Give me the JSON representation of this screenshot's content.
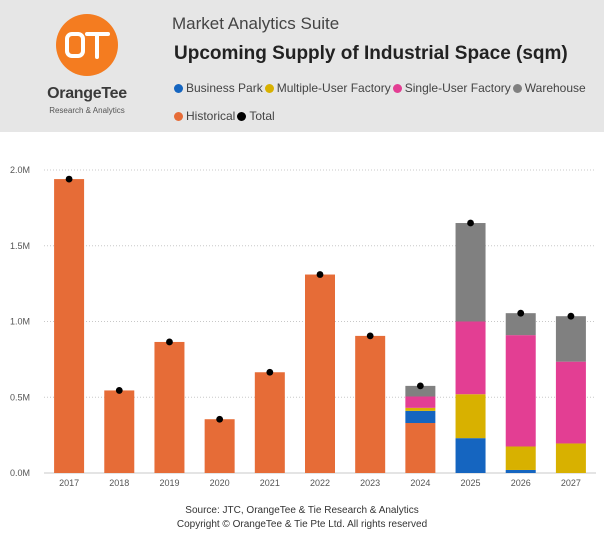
{
  "header": {
    "app_title": "Market Analytics Suite",
    "logo": {
      "name": "OrangeTee",
      "subtitle": "Research & Analytics",
      "mark": "OT",
      "color": "#f47c20"
    }
  },
  "legend": [
    {
      "name": "Business Park",
      "color": "#1565c0"
    },
    {
      "name": "Multiple-User Factory",
      "color": "#d8b100"
    },
    {
      "name": "Single-User Factory",
      "color": "#e33e93"
    },
    {
      "name": "Warehouse",
      "color": "#808080"
    },
    {
      "name": "Historical",
      "color": "#e66c37"
    },
    {
      "name": "Total",
      "color": "#000000"
    }
  ],
  "chart_data": {
    "type": "bar",
    "stacked": true,
    "title": "Upcoming Supply of Industrial Space (sqm)",
    "categories": [
      "2017",
      "2018",
      "2019",
      "2020",
      "2021",
      "2022",
      "2023",
      "2024",
      "2025",
      "2026",
      "2027"
    ],
    "series": [
      {
        "name": "Historical",
        "color": "#e66c37",
        "values": [
          1940000,
          545000,
          865000,
          355000,
          665000,
          1310000,
          905000,
          330000,
          0,
          0,
          0
        ]
      },
      {
        "name": "Business Park",
        "color": "#1565c0",
        "values": [
          0,
          0,
          0,
          0,
          0,
          0,
          0,
          80000,
          230000,
          20000,
          0
        ]
      },
      {
        "name": "Multiple-User Factory",
        "color": "#d8b100",
        "values": [
          0,
          0,
          0,
          0,
          0,
          0,
          0,
          20000,
          290000,
          155000,
          195000
        ]
      },
      {
        "name": "Single-User Factory",
        "color": "#e33e93",
        "values": [
          0,
          0,
          0,
          0,
          0,
          0,
          0,
          75000,
          480000,
          735000,
          540000
        ]
      },
      {
        "name": "Warehouse",
        "color": "#808080",
        "values": [
          0,
          0,
          0,
          0,
          0,
          0,
          0,
          70000,
          650000,
          145000,
          300000
        ]
      }
    ],
    "totals": {
      "name": "Total",
      "color": "#000000",
      "values": [
        1940000,
        545000,
        865000,
        355000,
        665000,
        1310000,
        905000,
        575000,
        1650000,
        1055000,
        1035000
      ]
    },
    "yticks": [
      "0.0M",
      "0.5M",
      "1.0M",
      "1.5M",
      "2.0M"
    ],
    "ytick_values": [
      0,
      500000,
      1000000,
      1500000,
      2000000
    ],
    "ylim": [
      0,
      2000000
    ],
    "xlabel": "",
    "ylabel": "",
    "grid": "horizontal-dotted",
    "legend_position": "top"
  },
  "footer": {
    "source": "Source: JTC, OrangeTee & Tie Research & Analytics",
    "copyright": "Copyright © OrangeTee & Tie Pte Ltd. All rights reserved"
  }
}
